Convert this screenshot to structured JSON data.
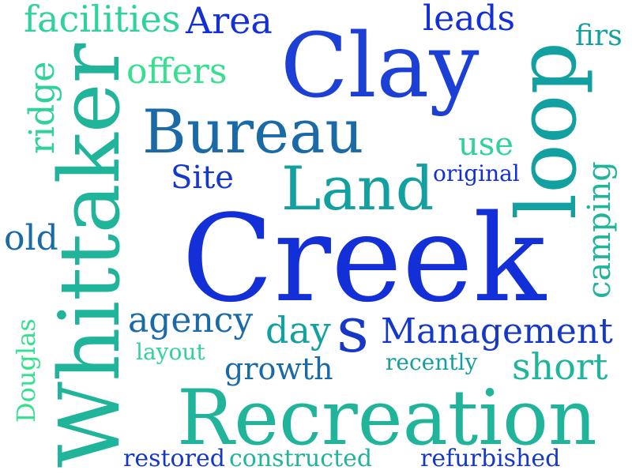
{
  "colors": {
    "background": "#ffffff",
    "blue": "#1c3fd6",
    "blue_deep": "#1330d8",
    "indigo": "#1638c8",
    "steel": "#1a6aa8",
    "teal": "#13a0a0",
    "teal_light": "#20b59a",
    "green": "#2ed29a",
    "mint": "#36e08e"
  },
  "words": {
    "facilities": "facilities",
    "area": "Area",
    "leads": "leads",
    "firs": "firs",
    "clay": "Clay",
    "offers": "offers",
    "ridge": "ridge",
    "whittaker": "Whittaker",
    "bureau": "Bureau",
    "use": "use",
    "loop": "loop",
    "site": "Site",
    "land": "Land",
    "original": "original",
    "camping": "camping",
    "old": "old",
    "creek": "Creek",
    "douglas": "Douglas",
    "agency": "agency",
    "day": "day",
    "s": "s",
    "management": "Management",
    "layout": "layout",
    "recently": "recently",
    "short": "short",
    "growth": "growth",
    "recreation": "Recreation",
    "restored": "restored",
    "constructed": "constructed",
    "refurbished": "refurbished"
  }
}
